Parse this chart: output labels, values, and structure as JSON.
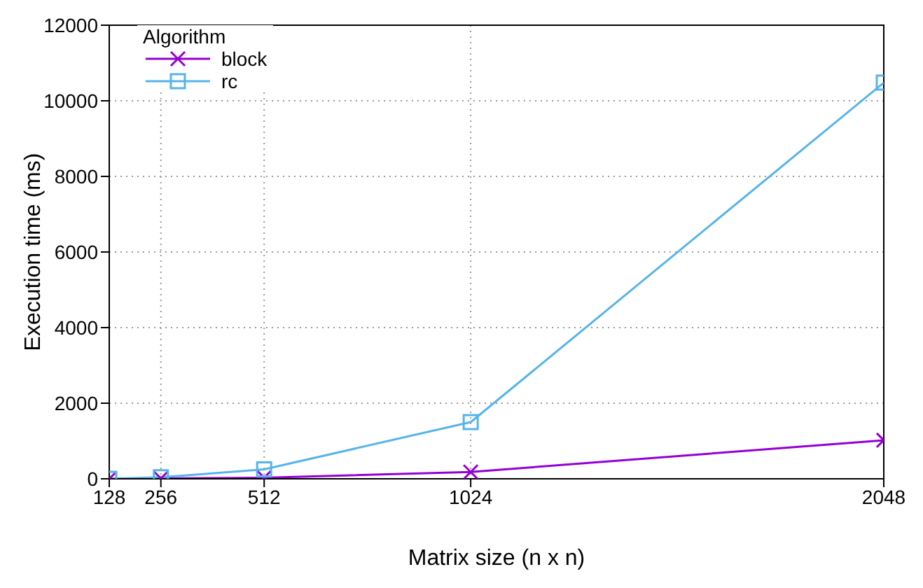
{
  "chart_data": {
    "type": "line",
    "xlabel": "Matrix size (n x n)",
    "ylabel": "Execution time (ms)",
    "legend_title": "Algorithm",
    "legend": "top left",
    "grid": true,
    "x": [
      128,
      256,
      512,
      1024,
      2048
    ],
    "xlim": [
      128,
      2048
    ],
    "xticks": [
      128,
      256,
      512,
      1024,
      2048
    ],
    "ylim": [
      0,
      12000
    ],
    "yticks": [
      0,
      2000,
      4000,
      6000,
      8000,
      10000,
      12000
    ],
    "series": [
      {
        "name": "block",
        "color": "#9400d3",
        "marker": "cross",
        "values": [
          0,
          10,
          30,
          180,
          1020
        ]
      },
      {
        "name": "rc",
        "color": "#56b4e9",
        "marker": "square",
        "values": [
          0,
          40,
          250,
          1500,
          10480
        ]
      }
    ]
  }
}
